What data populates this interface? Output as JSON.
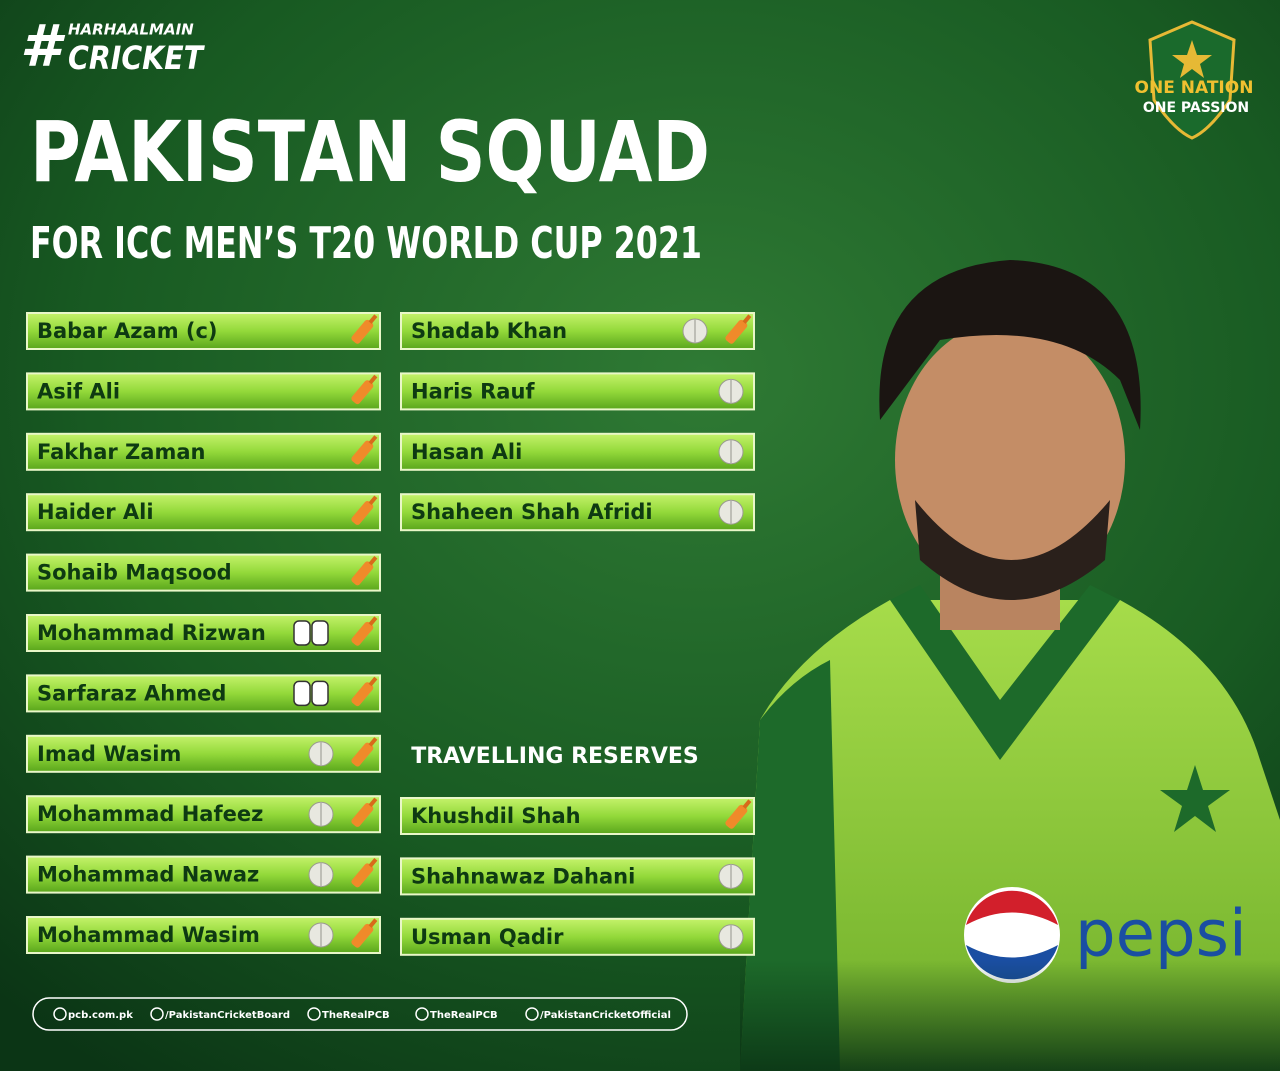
{
  "header": {
    "hashtag_symbol": "#",
    "hashtag_top": "HARHAALMAIN",
    "hashtag_bottom": "CRICKET",
    "badge_line1": "ONE NATION",
    "badge_line2": "ONE PASSION",
    "title": "PAKISTAN SQUAD",
    "subtitle": "FOR ICC MEN’S T20 WORLD CUP 2021"
  },
  "squad": [
    "Babar Azam (c)",
    "Asif Ali",
    "Fakhar Zaman",
    "Haider Ali",
    "Sohaib Maqsood",
    "Mohammad Rizwan",
    "Sarfaraz Ahmed",
    "Imad Wasim",
    "Mohammad Hafeez",
    "Mohammad Nawaz",
    "Mohammad Wasim",
    "Shadab Khan",
    "Haris Rauf",
    "Hasan Ali",
    "Shaheen Shah Afridi"
  ],
  "reserves": {
    "heading": "TRAVELLING RESERVES",
    "players": [
      "Khushdil Shah",
      "Shahnawaz Dahani",
      "Usman Qadir"
    ]
  },
  "photo": {
    "shirt_logo": "pepsi"
  },
  "footer": {
    "links": [
      "pcb.com.pk",
      "/PakistanCricketBoard",
      "TheRealPCB",
      "TheRealPCB",
      "/PakistanCricketOfficial"
    ]
  }
}
